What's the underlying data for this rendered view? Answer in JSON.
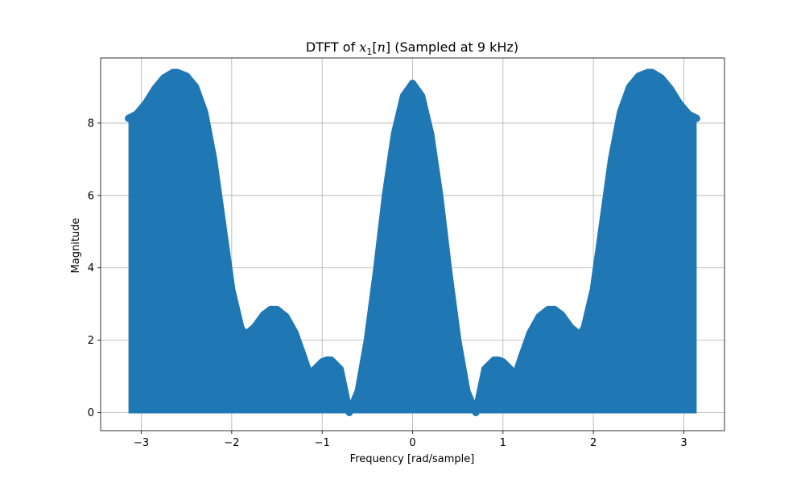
{
  "chart_data": {
    "type": "area",
    "title": {
      "prefix": "DTFT of ",
      "var": "x",
      "sub": "1",
      "bracket_open": "[",
      "index": "n",
      "bracket_close": "]",
      "suffix": " (Sampled at 9 kHz)"
    },
    "xlabel": "Frequency [rad/sample]",
    "ylabel": "Magnitude",
    "xlim": [
      -3.45,
      3.45
    ],
    "ylim": [
      -0.5,
      9.8
    ],
    "xticks": [
      -3,
      -2,
      -1,
      0,
      1,
      2,
      3
    ],
    "xtick_labels": [
      "−3",
      "−2",
      "−1",
      "0",
      "1",
      "2",
      "3"
    ],
    "yticks": [
      0,
      2,
      4,
      6,
      8
    ],
    "ytick_labels": [
      "0",
      "2",
      "4",
      "6",
      "8"
    ],
    "grid": true,
    "color": "#1f77b4",
    "series": [
      {
        "x": [
          0,
          0.1,
          0.2,
          0.3,
          0.4,
          0.5,
          0.6,
          0.7,
          0.8,
          0.9,
          0.95,
          1.0,
          1.1,
          1.15,
          1.2,
          1.3,
          1.4,
          1.5,
          1.57,
          1.65,
          1.75,
          1.85,
          1.9,
          2.0,
          2.1,
          2.2,
          2.3,
          2.4,
          2.5,
          2.6,
          2.65,
          2.75,
          2.85,
          2.95,
          3.05,
          3.1416
        ],
        "y": [
          9.1,
          8.75,
          7.7,
          6.0,
          3.9,
          2.0,
          0.6,
          0.0,
          1.2,
          1.45,
          1.45,
          1.4,
          1.15,
          1.12,
          1.5,
          2.2,
          2.65,
          2.85,
          2.85,
          2.7,
          2.35,
          2.15,
          2.35,
          3.4,
          5.2,
          7.0,
          8.3,
          9.0,
          9.3,
          9.4,
          9.4,
          9.25,
          8.95,
          8.55,
          8.25,
          8.13
        ]
      }
    ]
  }
}
